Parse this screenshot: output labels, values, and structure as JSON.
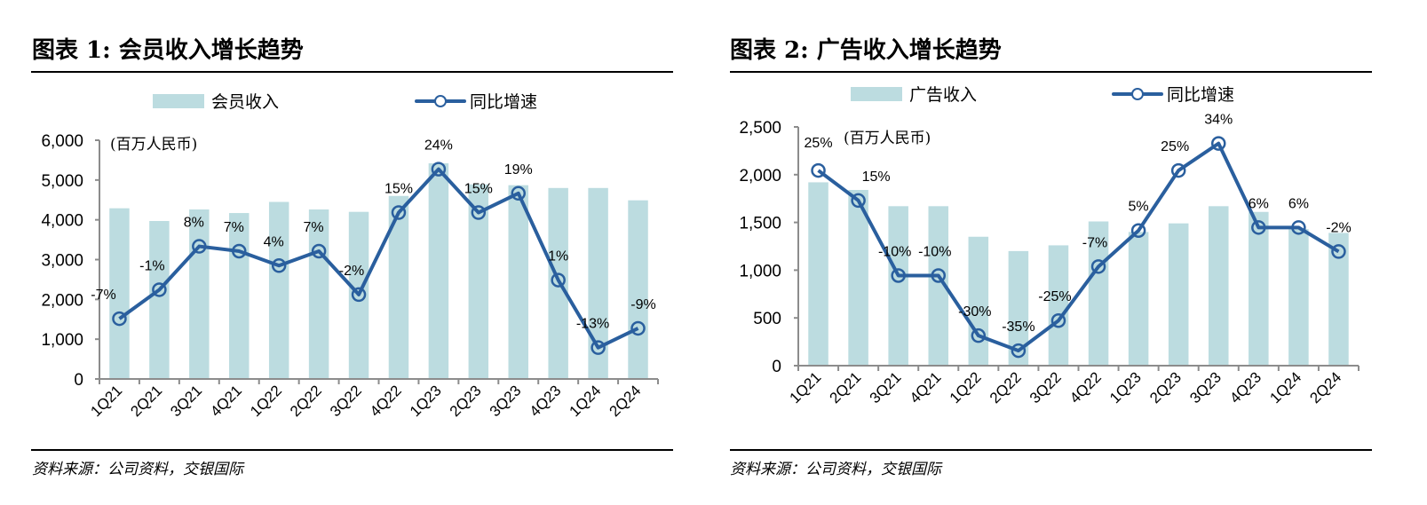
{
  "charts": [
    {
      "title": "图表 1: 会员收入增长趋势",
      "source": "资料来源：公司资料，交银国际",
      "legend": {
        "bar": "会员收入",
        "line": "同比增速"
      },
      "unit_label": "(百万人民币)"
    },
    {
      "title": "图表 2: 广告收入增长趋势",
      "source": "资料来源：公司资料，交银国际",
      "legend": {
        "bar": "广告收入",
        "line": "同比增速"
      },
      "unit_label": "(百万人民币)"
    }
  ],
  "colors": {
    "bar": "#bcdce0",
    "line": "#2a5f9e",
    "axis": "#8c8c8c"
  },
  "chart_data": [
    {
      "type": "bar",
      "title": "图表 1: 会员收入增长趋势",
      "xlabel": "",
      "ylabel": "(百万人民币)",
      "categories": [
        "1Q21",
        "2Q21",
        "3Q21",
        "4Q21",
        "1Q22",
        "2Q22",
        "3Q22",
        "4Q22",
        "1Q23",
        "2Q23",
        "3Q23",
        "4Q23",
        "1Q24",
        "2Q24"
      ],
      "ylim": [
        0,
        6000
      ],
      "yticks": [
        "0",
        "1,000",
        "2,000",
        "3,000",
        "4,000",
        "5,000",
        "6,000"
      ],
      "y2lim": [
        -19.5,
        30
      ],
      "legend_position": "top",
      "series": [
        {
          "name": "会员收入",
          "kind": "bar",
          "axis": "left",
          "values": [
            4290,
            3970,
            4260,
            4170,
            4450,
            4260,
            4200,
            4600,
            5420,
            4890,
            4870,
            4800,
            4800,
            4490
          ]
        },
        {
          "name": "同比增速",
          "kind": "line",
          "axis": "right",
          "unit": "%",
          "values": [
            -7,
            -1,
            8,
            7,
            4,
            7,
            -2,
            15,
            24,
            15,
            19,
            1,
            -13,
            -9
          ],
          "labels": [
            "-7%",
            "-1%",
            "8%",
            "7%",
            "4%",
            "7%",
            "-2%",
            "15%",
            "24%",
            "15%",
            "19%",
            "1%",
            "-13%",
            "-9%"
          ]
        }
      ]
    },
    {
      "type": "bar",
      "title": "图表 2: 广告收入增长趋势",
      "xlabel": "",
      "ylabel": "(百万人民币)",
      "categories": [
        "1Q21",
        "2Q21",
        "3Q21",
        "4Q21",
        "1Q22",
        "2Q22",
        "3Q22",
        "4Q22",
        "1Q23",
        "2Q23",
        "3Q23",
        "4Q23",
        "1Q24",
        "2Q24"
      ],
      "ylim": [
        0,
        2500
      ],
      "yticks": [
        "0",
        "500",
        "1,000",
        "1,500",
        "2,000",
        "2,500"
      ],
      "y2lim": [
        -40,
        39.5
      ],
      "legend_position": "top",
      "series": [
        {
          "name": "广告收入",
          "kind": "bar",
          "axis": "left",
          "values": [
            1920,
            1840,
            1670,
            1670,
            1350,
            1200,
            1260,
            1510,
            1400,
            1490,
            1670,
            1610,
            1430,
            1390
          ]
        },
        {
          "name": "同比增速",
          "kind": "line",
          "axis": "right",
          "unit": "%",
          "values": [
            25,
            15,
            -10,
            -10,
            -30,
            -35,
            -25,
            -7,
            5,
            25,
            34,
            6,
            6,
            -2
          ],
          "labels": [
            "25%",
            "15%",
            "-10%",
            "-10%",
            "-30%",
            "-35%",
            "-25%",
            "-7%",
            "5%",
            "25%",
            "34%",
            "6%",
            "6%",
            "-2%"
          ]
        }
      ]
    }
  ]
}
